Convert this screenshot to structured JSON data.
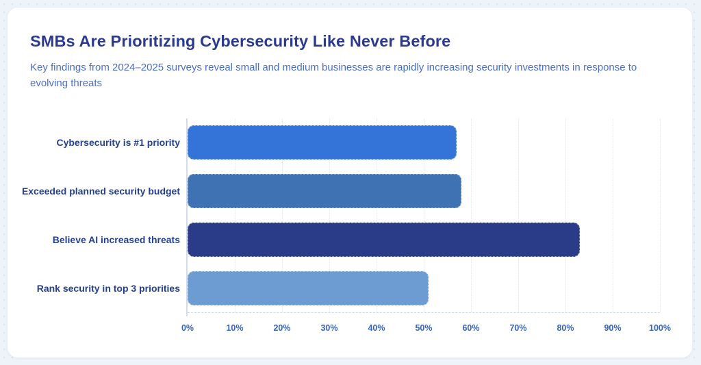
{
  "header": {
    "title": "SMBs Are Prioritizing Cybersecurity Like Never Before",
    "subtitle": "Key findings from 2024–2025 surveys reveal small and medium businesses are rapidly increasing security investments in response to evolving threats"
  },
  "chart_data": {
    "type": "bar",
    "orientation": "horizontal",
    "title": "SMBs Are Prioritizing Cybersecurity Like Never Before",
    "categories": [
      "Cybersecurity is #1 priority",
      "Exceeded planned security budget",
      "Believe AI increased threats",
      "Rank security in top 3 priorities"
    ],
    "values": [
      57,
      58,
      83,
      51
    ],
    "unit": "%",
    "bar_colors": [
      "#3474d8",
      "#3f72b2",
      "#2a3b88",
      "#6c9cd1"
    ],
    "xlabel": "",
    "ylabel": "",
    "xlim": [
      0,
      100
    ],
    "x_ticks": [
      "0%",
      "10%",
      "20%",
      "30%",
      "40%",
      "50%",
      "60%",
      "70%",
      "80%",
      "90%",
      "100%"
    ],
    "grid": true,
    "legend": "none"
  },
  "colors": {
    "page_background": "#eef3fa",
    "card_background": "#ffffff",
    "title": "#2b3a8f",
    "subtitle": "#4a6fc9",
    "category_label": "#24408f",
    "tick_label": "#3a64b8",
    "gridline": "#dde4f1",
    "axis_line": "#d3dcea"
  }
}
